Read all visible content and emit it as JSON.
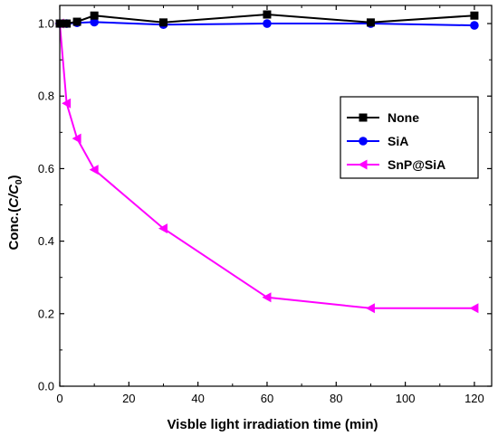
{
  "chart_data": {
    "type": "line",
    "xlabel": "Visble light irradiation time (min)",
    "ylabel_main": "Conc.(",
    "ylabel_italic": "C/C",
    "ylabel_sub": "0",
    "ylabel_close": ")",
    "xlim": [
      0,
      125
    ],
    "ylim": [
      0,
      1.05
    ],
    "xticks": [
      0,
      20,
      40,
      60,
      80,
      100,
      120
    ],
    "yticks": [
      0.0,
      0.2,
      0.4,
      0.6,
      0.8,
      1.0
    ],
    "xtick_labels": [
      "0",
      "20",
      "40",
      "60",
      "80",
      "100",
      "120"
    ],
    "ytick_labels": [
      "0.0",
      "0.2",
      "0.4",
      "0.6",
      "0.8",
      "1.0"
    ],
    "legend_position": "right-middle",
    "series": [
      {
        "name": "None",
        "color": "#000000",
        "marker": "square",
        "x": [
          0,
          2,
          5,
          10,
          30,
          60,
          90,
          120
        ],
        "y": [
          1.0,
          1.0,
          1.005,
          1.022,
          1.003,
          1.025,
          1.003,
          1.022
        ]
      },
      {
        "name": "SiA",
        "color": "#0000ff",
        "marker": "circle",
        "x": [
          0,
          2,
          5,
          10,
          30,
          60,
          90,
          120
        ],
        "y": [
          1.0,
          1.0,
          1.002,
          1.004,
          0.997,
          1.0,
          1.0,
          0.995
        ]
      },
      {
        "name": "SnP@SiA",
        "color": "#ff00ff",
        "marker": "triangle-left",
        "x": [
          0,
          2,
          5,
          10,
          30,
          60,
          90,
          120
        ],
        "y": [
          1.0,
          0.78,
          0.683,
          0.597,
          0.435,
          0.245,
          0.215,
          0.215
        ]
      }
    ]
  }
}
